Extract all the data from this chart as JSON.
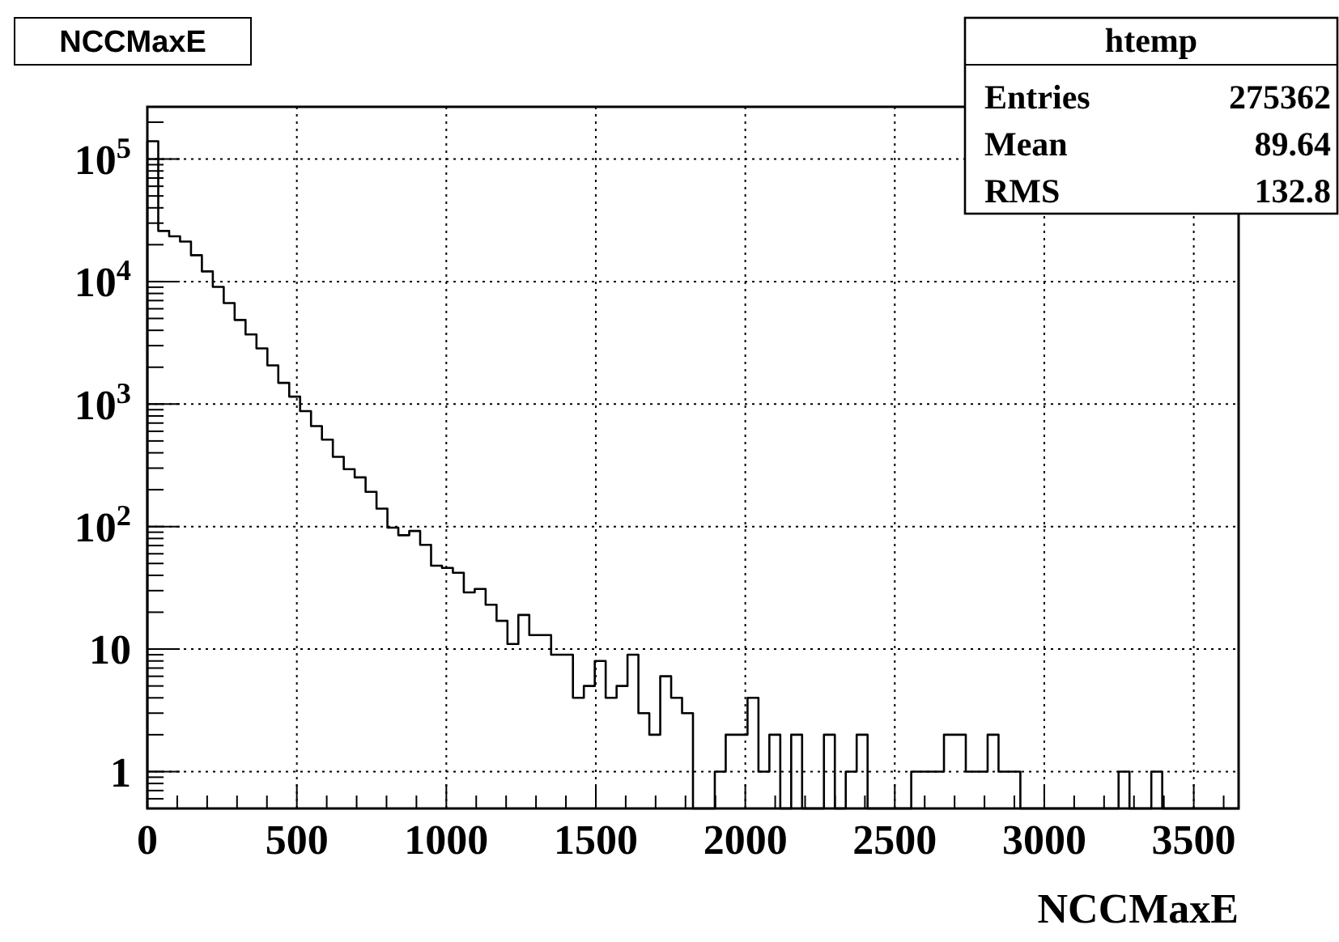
{
  "chart_data": {
    "type": "histogram",
    "title": "NCCMaxE",
    "xlabel": "NCCMaxE",
    "annotations": [
      "htemp",
      "Entries",
      "275362",
      "Mean",
      "89.64",
      "RMS",
      "132.8"
    ],
    "bins": [
      0,
      36.5,
      73,
      109.5,
      146,
      182.5,
      219,
      255.5,
      292,
      328.5,
      365,
      401.5,
      438,
      474.5,
      511,
      547.5,
      584,
      620.5,
      657,
      693.5,
      730,
      766.5,
      803,
      839.5,
      876,
      912.5,
      949,
      985.5,
      1022,
      1058.5,
      1095,
      1131.5,
      1168,
      1204.5,
      1241,
      1277.5,
      1314,
      1350.5,
      1387,
      1423.5,
      1460,
      1496.5,
      1533,
      1569.5,
      1606,
      1642.5,
      1679,
      1715.5,
      1752,
      1788.5,
      1825,
      1861.5,
      1898,
      1934.5,
      1971,
      2007.5,
      2044,
      2080.5,
      2117,
      2153.5,
      2190,
      2226.5,
      2263,
      2299.5,
      2336,
      2372.5,
      2409,
      2445.5,
      2482,
      2518.5,
      2555,
      2591.5,
      2628,
      2664.5,
      2701,
      2737.5,
      2774,
      2810.5,
      2847,
      2883.5,
      2920,
      2956.5,
      2993,
      3029.5,
      3066,
      3102.5,
      3139,
      3175.5,
      3212,
      3248.5,
      3285,
      3321.5,
      3358,
      3394.5,
      3431,
      3467.5,
      3504,
      3540.5,
      3577,
      3613.5,
      3650
    ],
    "values": [
      140000,
      25900,
      23400,
      21200,
      16400,
      12100,
      9040,
      6670,
      4860,
      3700,
      2850,
      2070,
      1490,
      1150,
      877,
      661,
      512,
      371,
      294,
      252,
      192,
      140,
      98,
      85,
      92,
      71,
      48,
      46,
      42,
      29,
      31,
      23,
      17,
      11,
      19,
      13,
      13,
      9,
      9,
      4,
      5,
      8,
      4,
      5,
      9,
      3,
      2,
      6,
      4,
      3,
      null,
      null,
      1,
      2,
      2,
      4,
      1,
      2,
      null,
      2,
      null,
      null,
      2,
      null,
      1,
      2,
      null,
      null,
      null,
      null,
      1,
      1,
      1,
      2,
      2,
      1,
      1,
      2,
      1,
      1,
      null,
      null,
      null,
      null,
      null,
      null,
      null,
      null,
      null,
      1,
      null,
      null,
      1,
      null,
      null,
      null,
      null,
      null,
      null,
      null
    ],
    "color": "#000000",
    "log": "y",
    "grid": true,
    "xlim": [
      0,
      3650
    ],
    "ylim": [
      0.5,
      267000
    ],
    "xticks": [
      0,
      500,
      1000,
      1500,
      2000,
      2500,
      3000,
      3500
    ],
    "yticks": [
      1,
      10,
      {
        "value": 100,
        "label": "10$^{2}$"
      },
      {
        "value": 1000,
        "label": "10$^{3}$"
      },
      {
        "value": 10000,
        "label": "10$^{4}$"
      },
      {
        "value": 100000,
        "label": "10$^{5}$"
      }
    ]
  }
}
